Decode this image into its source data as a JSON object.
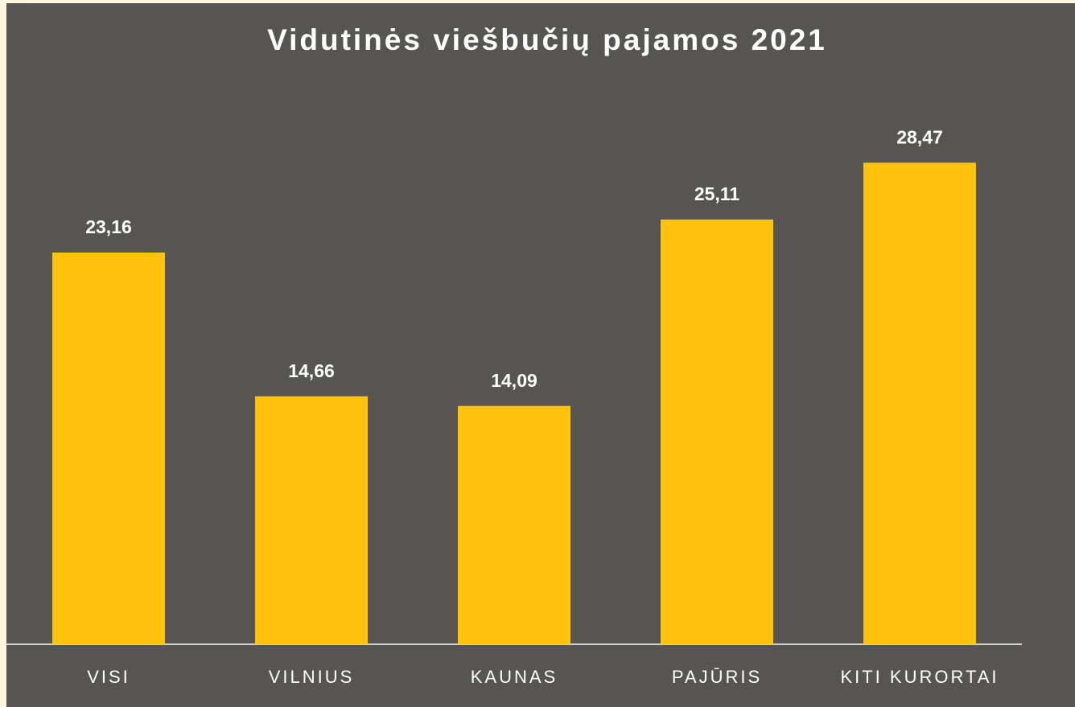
{
  "chart_data": {
    "type": "bar",
    "title": "Vidutinės viešbučių pajamos 2021",
    "categories": [
      "VISI",
      "VILNIUS",
      "KAUNAS",
      "PAJŪRIS",
      "KITI KURORTAI"
    ],
    "values": [
      23.16,
      14.66,
      14.09,
      25.11,
      28.47
    ],
    "value_labels": [
      "23,16",
      "14,66",
      "14,09",
      "25,11",
      "28,47"
    ],
    "color": "#ffc20e"
  }
}
